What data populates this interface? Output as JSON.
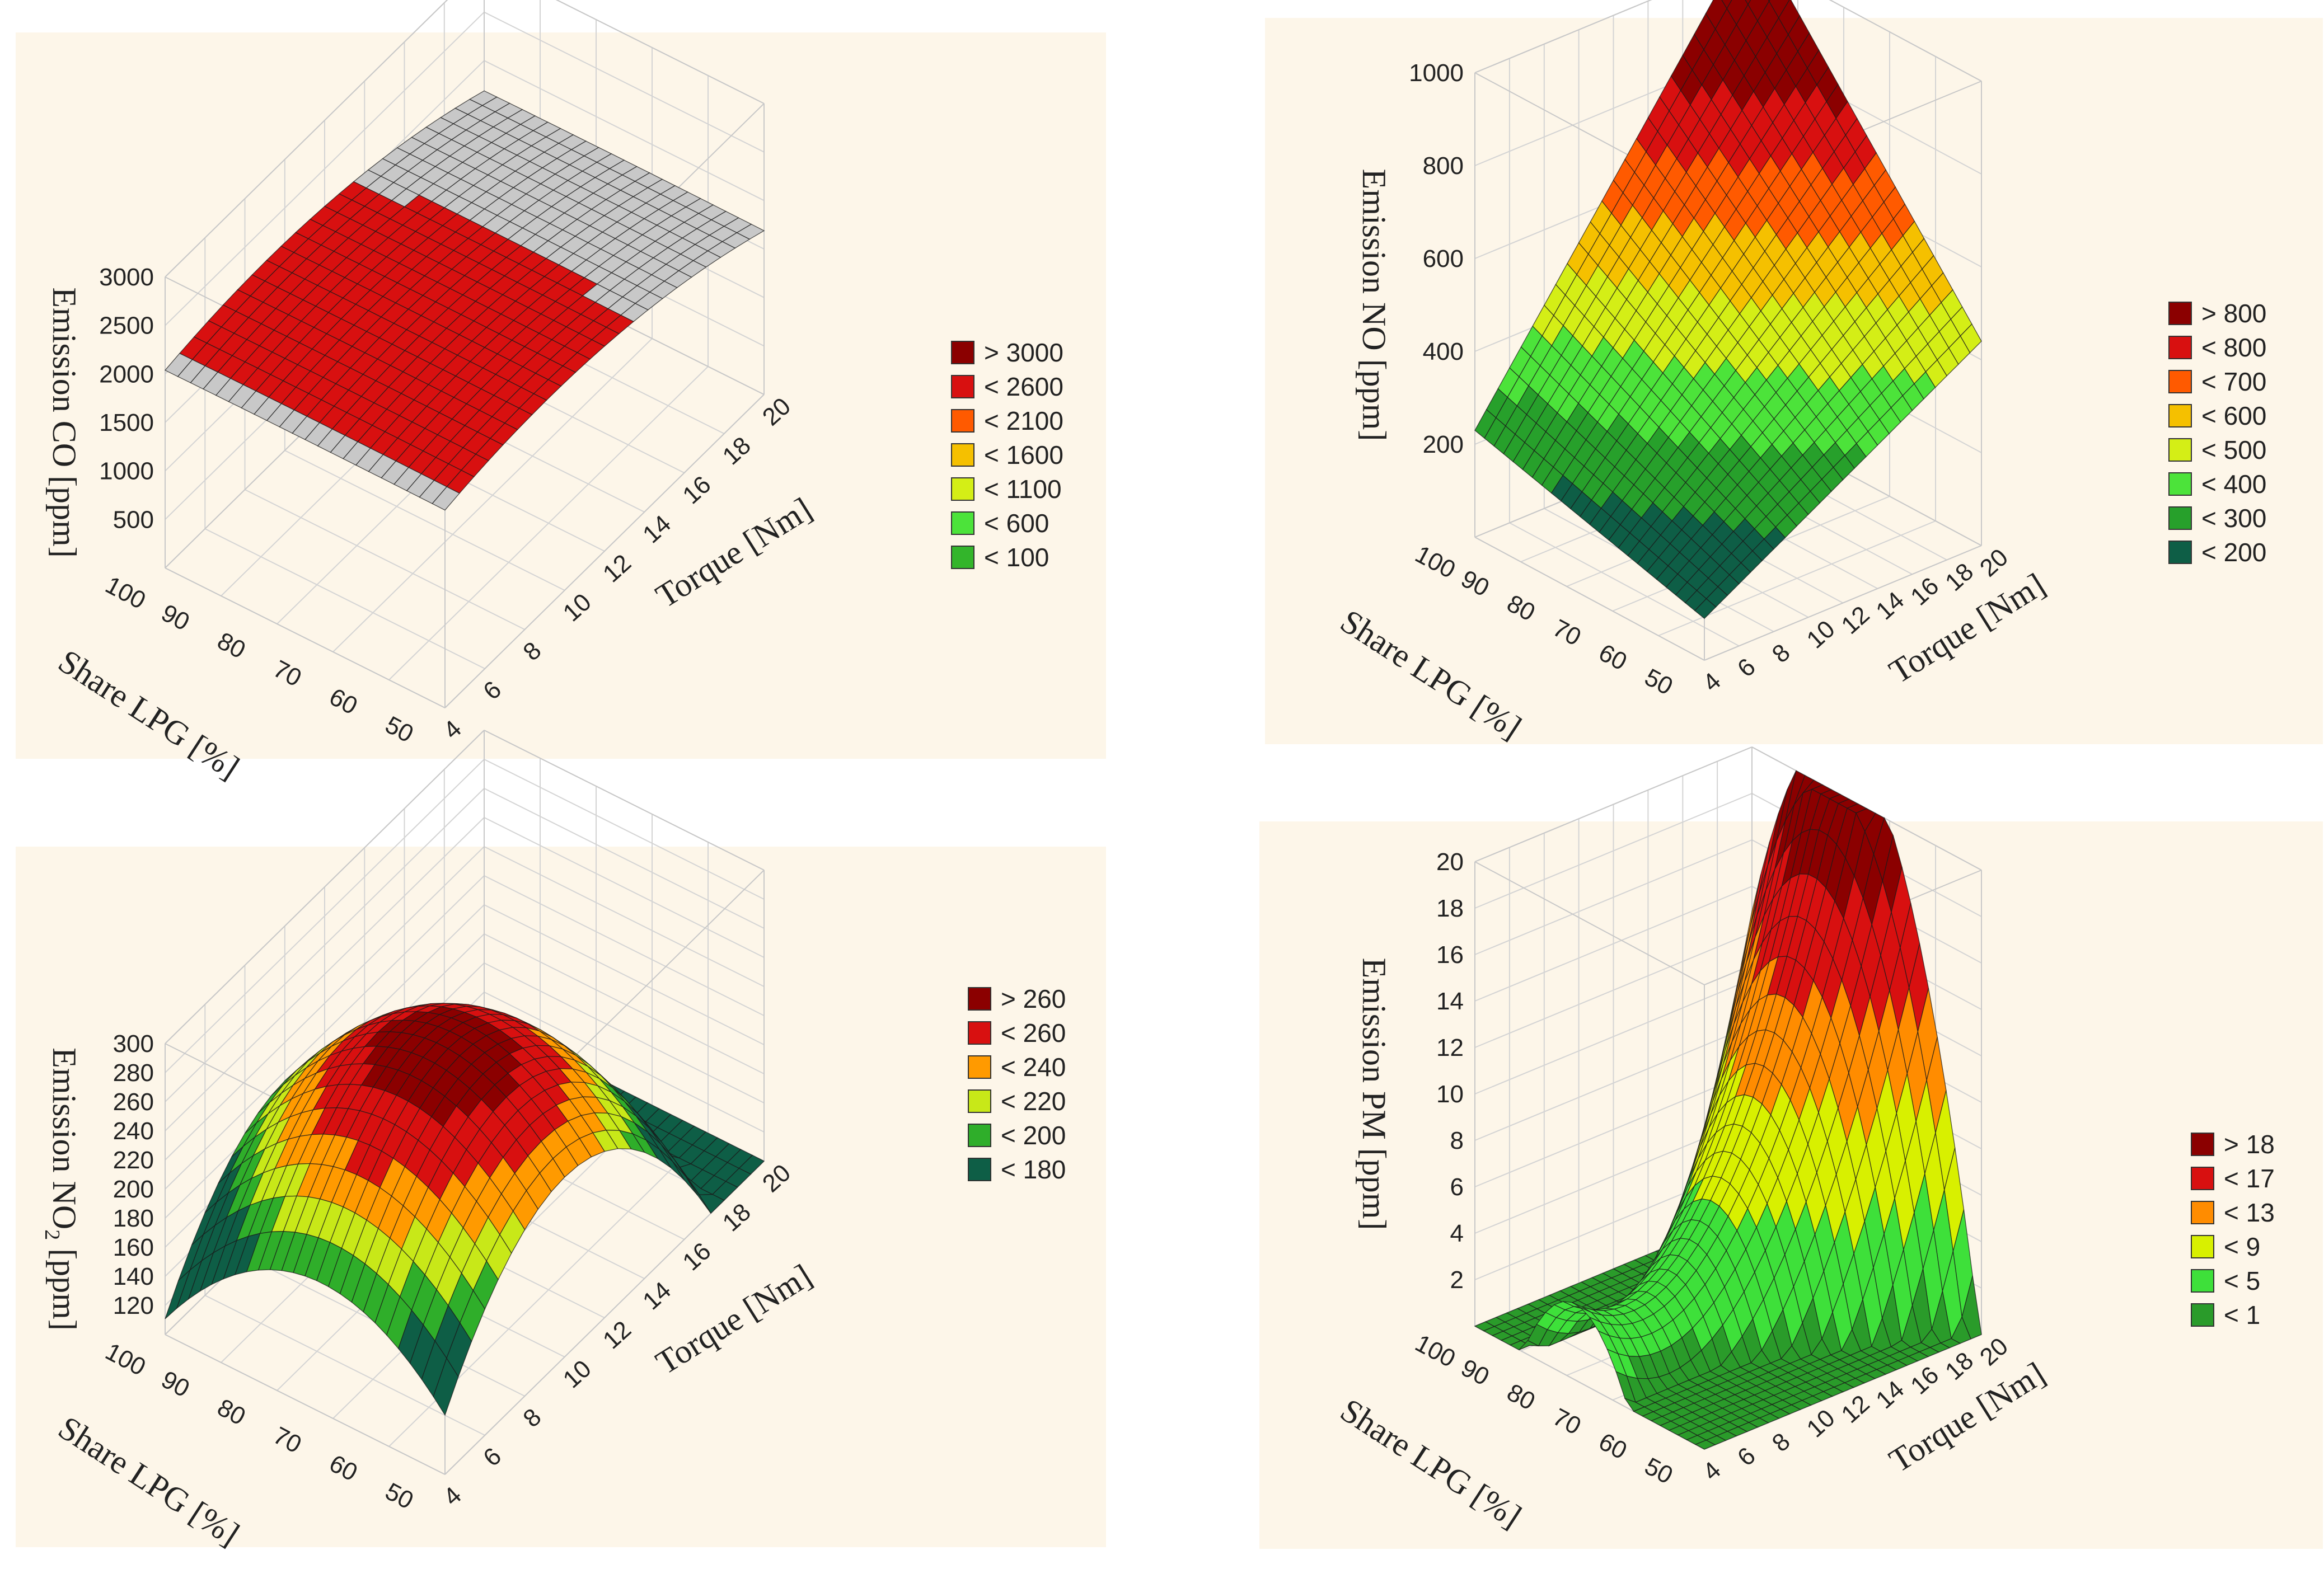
{
  "chart_data": [
    {
      "type": "surface3d",
      "id": "co",
      "zlabel": "Emission CO [ppm]",
      "xlabel": "Torque [Nm]",
      "ylabel": "Share LPG [%]",
      "xlim": [
        4,
        20
      ],
      "ylim": [
        50,
        100
      ],
      "zlim": [
        0,
        3000
      ],
      "xticks": [
        4,
        6,
        8,
        10,
        12,
        14,
        16,
        18,
        20
      ],
      "yticks": [
        50,
        60,
        70,
        80,
        90,
        100
      ],
      "zticks": [
        500,
        1000,
        1500,
        2000,
        2500,
        3000
      ],
      "xtick_labels": [
        "4",
        "6",
        "8",
        "10",
        "12",
        "14",
        "16",
        "18",
        "20"
      ],
      "ytick_labels": [
        "50",
        "60",
        "70",
        "80",
        "90",
        "100"
      ],
      "ztick_labels": [
        "500",
        "1000",
        "1500",
        "2000",
        "2500",
        "3000"
      ],
      "surface_model": {
        "form": "quadratic",
        "x0": 9.2,
        "y0": 75,
        "peak": 2150,
        "ax": 3.9,
        "ay": 0.01,
        "bx": -10.6,
        "by": 0
      },
      "legend": {
        "labels": [
          "> 3000",
          "< 2600",
          "< 2100",
          "< 1600",
          "< 1100",
          "< 600",
          "< 100"
        ],
        "colors": [
          "#8b0000",
          "#d81010",
          "#ff5a00",
          "#f5c000",
          "#d4ee16",
          "#4ce33a",
          "#33b52b"
        ]
      },
      "color_breaks": [
        {
          "max": 2064,
          "color": "#c8c8c8"
        },
        {
          "max": 2600,
          "color": "#d81010"
        },
        {
          "max": 1000000000.0,
          "color": "#8b0000"
        }
      ],
      "grid_cells": 22
    },
    {
      "type": "surface3d",
      "id": "no",
      "zlabel": "Emission NO [ppm]",
      "xlabel": "Torque [Nm]",
      "ylabel": "Share LPG [%]",
      "xlim": [
        4,
        20
      ],
      "ylim": [
        50,
        100
      ],
      "zlim": [
        0,
        1000
      ],
      "xticks": [
        4,
        6,
        8,
        10,
        12,
        14,
        16,
        18,
        20
      ],
      "yticks": [
        50,
        60,
        70,
        80,
        90,
        100
      ],
      "zticks": [
        200,
        400,
        600,
        800,
        1000
      ],
      "xtick_labels": [
        "4",
        "6",
        "8",
        "10",
        "12",
        "14",
        "16",
        "18",
        "20"
      ],
      "ytick_labels": [
        "50",
        "60",
        "70",
        "80",
        "90",
        "100"
      ],
      "ztick_labels": [
        "200",
        "400",
        "600",
        "800",
        "1000"
      ],
      "surface_model": {
        "form": "bilinear",
        "z00": 90,
        "z10": 440,
        "z01": 230,
        "z11": 1060
      },
      "legend": {
        "labels": [
          "> 800",
          "< 800",
          "< 700",
          "< 600",
          "< 500",
          "< 400",
          "< 300",
          "< 200"
        ],
        "colors": [
          "#8b0000",
          "#d81010",
          "#ff5a00",
          "#f5c000",
          "#d4ee16",
          "#4ce33a",
          "#27a02b",
          "#0e5e46"
        ]
      },
      "color_breaks": [
        {
          "max": 200,
          "color": "#0e5e46"
        },
        {
          "max": 300,
          "color": "#27a02b"
        },
        {
          "max": 400,
          "color": "#4ce33a"
        },
        {
          "max": 500,
          "color": "#d4ee16"
        },
        {
          "max": 600,
          "color": "#f5c000"
        },
        {
          "max": 700,
          "color": "#ff5a00"
        },
        {
          "max": 800,
          "color": "#d81010"
        },
        {
          "max": 1000000000.0,
          "color": "#8b0000"
        }
      ],
      "grid_cells": 24
    },
    {
      "type": "surface3d",
      "id": "no2",
      "zlabel": "Emission NO",
      "zlabel_sub": "2",
      "zlabel_unit": " [ppm]",
      "xlabel": "Torque [Nm]",
      "ylabel": "Share LPG [%]",
      "xlim": [
        4,
        20
      ],
      "ylim": [
        50,
        100
      ],
      "zlim": [
        100,
        300
      ],
      "xticks": [
        4,
        6,
        8,
        10,
        12,
        14,
        16,
        18,
        20
      ],
      "yticks": [
        50,
        60,
        70,
        80,
        90,
        100
      ],
      "zticks": [
        120,
        140,
        160,
        180,
        200,
        220,
        240,
        260,
        280,
        300
      ],
      "xtick_labels": [
        "4",
        "6",
        "8",
        "10",
        "12",
        "14",
        "16",
        "18",
        "20"
      ],
      "ytick_labels": [
        "50",
        "60",
        "70",
        "80",
        "90",
        "100"
      ],
      "ztick_labels": [
        "120",
        "140",
        "160",
        "180",
        "200",
        "220",
        "240",
        "260",
        "280",
        "300"
      ],
      "surface_model": {
        "form": "quadratic",
        "x0": 10,
        "y0": 72,
        "peak": 272,
        "ax": 2.3,
        "ay": 0.1,
        "bx": 0,
        "by": 0
      },
      "legend": {
        "labels": [
          "> 260",
          "< 260",
          "< 240",
          "< 220",
          "< 200",
          "< 180"
        ],
        "colors": [
          "#8b0000",
          "#d81010",
          "#ff9a00",
          "#c8e818",
          "#2fae2a",
          "#0e5e46"
        ]
      },
      "color_breaks": [
        {
          "max": 180,
          "color": "#0e5e46"
        },
        {
          "max": 200,
          "color": "#2fae2a"
        },
        {
          "max": 220,
          "color": "#c8e818"
        },
        {
          "max": 240,
          "color": "#ff9a00"
        },
        {
          "max": 260,
          "color": "#d81010"
        },
        {
          "max": 1000000000.0,
          "color": "#8b0000"
        }
      ],
      "grid_cells": 24
    },
    {
      "type": "surface3d",
      "id": "pm",
      "zlabel": "Emission PM [ppm]",
      "xlabel": "Torque [Nm]",
      "ylabel": "Share LPG [%]",
      "xlim": [
        4,
        20
      ],
      "ylim": [
        50,
        100
      ],
      "zlim": [
        0,
        20
      ],
      "xticks": [
        4,
        6,
        8,
        10,
        12,
        14,
        16,
        18,
        20
      ],
      "yticks": [
        50,
        60,
        70,
        80,
        90,
        100
      ],
      "zticks": [
        2,
        4,
        6,
        8,
        10,
        12,
        14,
        16,
        18,
        20
      ],
      "xtick_labels": [
        "4",
        "6",
        "8",
        "10",
        "12",
        "14",
        "16",
        "18",
        "20"
      ],
      "ytick_labels": [
        "50",
        "60",
        "70",
        "80",
        "90",
        "100"
      ],
      "ztick_labels": [
        "2",
        "4",
        "6",
        "8",
        "10",
        "12",
        "14",
        "16",
        "18",
        "20"
      ],
      "surface_model": {
        "form": "saddle",
        "c": 2.2,
        "x0": 7,
        "y0": 78,
        "ax": 0.1,
        "ay": 0.0025,
        "ex": 0.035,
        "gx": 0.9
      },
      "legend": {
        "labels": [
          "> 18",
          "< 17",
          "< 13",
          "< 9",
          "< 5",
          "< 1"
        ],
        "colors": [
          "#8b0000",
          "#d81010",
          "#ff8c00",
          "#d8f000",
          "#3ee03a",
          "#2a9b2a"
        ]
      },
      "color_breaks": [
        {
          "max": 1,
          "color": "#2a9b2a"
        },
        {
          "max": 5,
          "color": "#3ee03a"
        },
        {
          "max": 9,
          "color": "#d8f000"
        },
        {
          "max": 13,
          "color": "#ff8c00"
        },
        {
          "max": 17,
          "color": "#d81010"
        },
        {
          "max": 1000000000.0,
          "color": "#8b0000"
        }
      ],
      "grid_cells": 26
    }
  ]
}
